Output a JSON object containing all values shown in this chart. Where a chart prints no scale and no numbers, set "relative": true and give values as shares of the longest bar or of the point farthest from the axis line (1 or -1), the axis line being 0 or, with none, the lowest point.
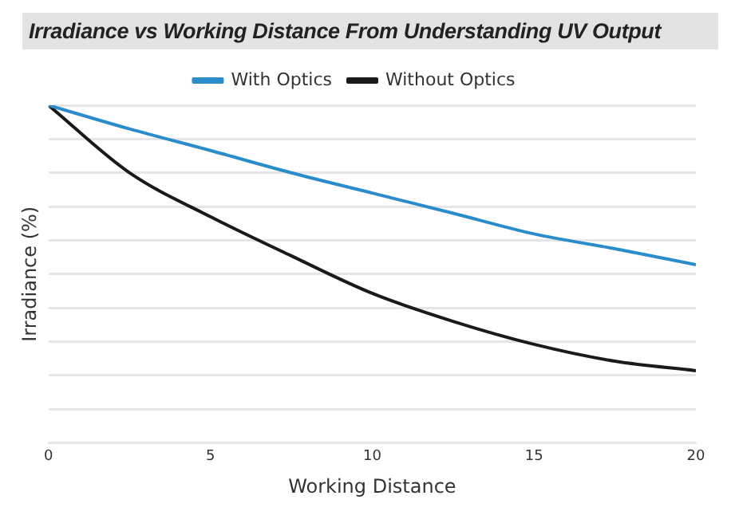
{
  "chart_data": {
    "type": "line",
    "title": "Irradiance vs Working Distance From Understanding UV Output",
    "xlabel": "Working Distance",
    "ylabel": "Irradiance (%)",
    "x": [
      0,
      2.5,
      5,
      7.5,
      10,
      12.5,
      15,
      17.5,
      20
    ],
    "xlim": [
      0,
      20
    ],
    "xticks": [
      0,
      5,
      10,
      15,
      20
    ],
    "relative": true,
    "grid": "y",
    "legend": "top",
    "marker": "none",
    "line_style": "solid",
    "series": [
      {
        "name": "With Optics",
        "color": "#2b8ccc",
        "values": [
          1,
          0.93,
          0.866,
          0.8,
          0.74,
          0.68,
          0.619,
          0.575,
          0.528
        ]
      },
      {
        "name": "Without Optics",
        "color": "#1a1a1a",
        "values": [
          1,
          0.8,
          0.67,
          0.554,
          0.443,
          0.36,
          0.292,
          0.242,
          0.214
        ]
      }
    ]
  }
}
